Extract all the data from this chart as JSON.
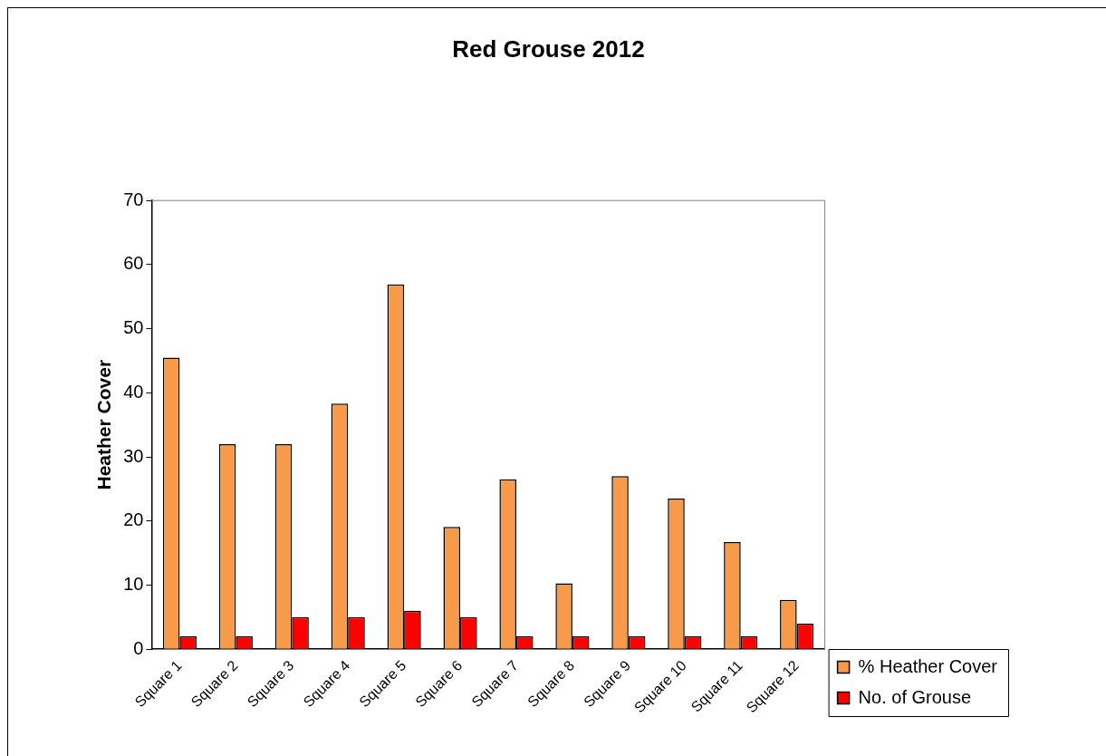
{
  "chart_data": {
    "type": "bar",
    "title": "Red Grouse 2012",
    "ylabel": "Heather Cover",
    "categories": [
      "Square 1",
      "Square 2",
      "Square 3",
      "Square 4",
      "Square 5",
      "Square 6",
      "Square 7",
      "Square 8",
      "Square 9",
      "Square 10",
      "Square 11",
      "Square 12"
    ],
    "series": [
      {
        "name": "% Heather Cover",
        "color": "#f79b4b",
        "values": [
          45.5,
          32,
          32,
          38.3,
          56.9,
          19.1,
          26.5,
          10.3,
          27,
          23.5,
          16.7,
          7.7
        ]
      },
      {
        "name": "No. of Grouse",
        "color": "#ff0000",
        "values": [
          2,
          2,
          5,
          5,
          6,
          5,
          2,
          2,
          2,
          2,
          2,
          4
        ]
      }
    ],
    "ylim": [
      0,
      70
    ],
    "yticks": [
      0,
      10,
      20,
      30,
      40,
      50,
      60,
      70
    ],
    "grid": false,
    "legend": "bottom right"
  }
}
